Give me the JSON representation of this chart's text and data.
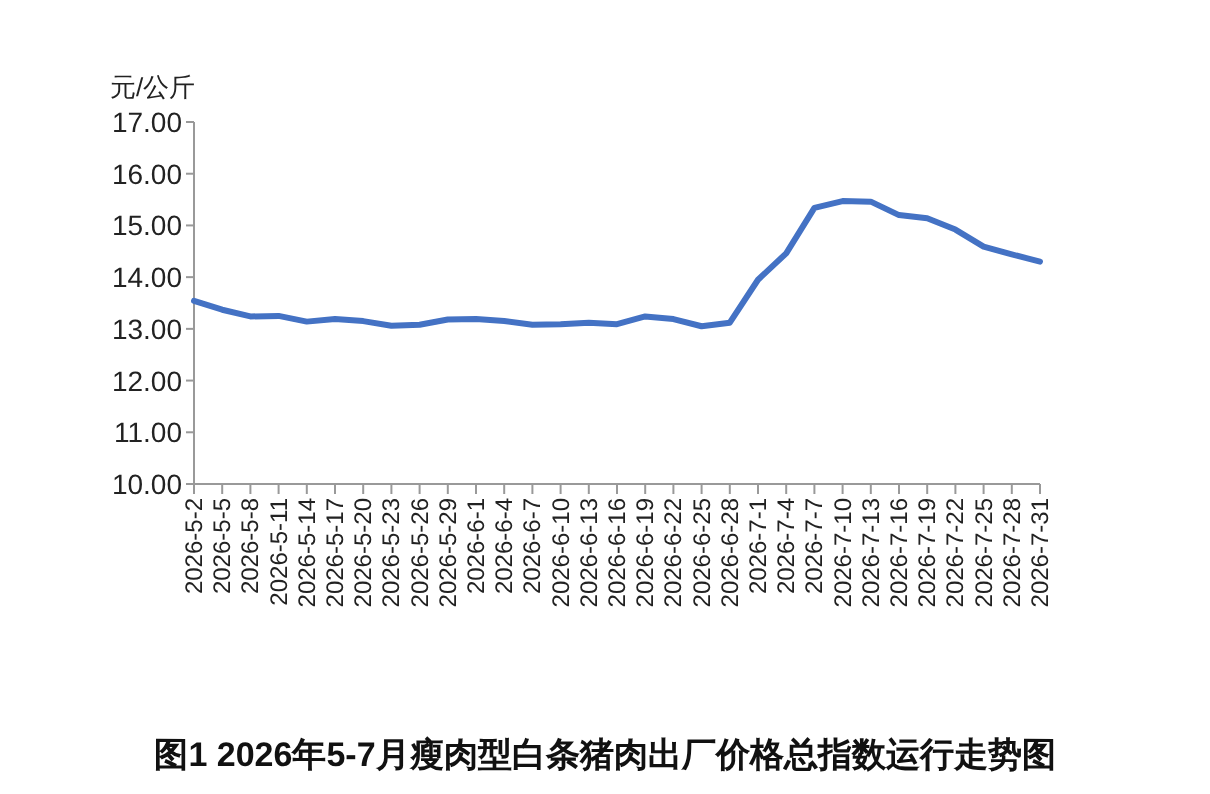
{
  "chart_data": {
    "type": "line",
    "title": "图1 2026年5-7月瘦肉型白条猪肉出厂价格总指数运行走势图",
    "ylabel": "元/公斤",
    "categories": [
      "2026-5-2",
      "2026-5-5",
      "2026-5-8",
      "2026-5-11",
      "2026-5-14",
      "2026-5-17",
      "2026-5-20",
      "2026-5-23",
      "2026-5-26",
      "2026-5-29",
      "2026-6-1",
      "2026-6-4",
      "2026-6-7",
      "2026-6-10",
      "2026-6-13",
      "2026-6-16",
      "2026-6-19",
      "2026-6-22",
      "2026-6-25",
      "2026-6-28",
      "2026-7-1",
      "2026-7-4",
      "2026-7-7",
      "2026-7-10",
      "2026-7-13",
      "2026-7-16",
      "2026-7-19",
      "2026-7-22",
      "2026-7-25",
      "2026-7-28",
      "2026-7-31"
    ],
    "series": [
      {
        "color": "#4472c4",
        "values": [
          13.54,
          13.37,
          13.24,
          13.25,
          13.14,
          13.19,
          13.15,
          13.06,
          13.08,
          13.18,
          13.19,
          13.15,
          13.08,
          13.09,
          13.12,
          13.09,
          13.24,
          13.19,
          13.05,
          13.12,
          13.95,
          14.46,
          15.34,
          15.47,
          15.46,
          15.2,
          15.14,
          14.92,
          14.59,
          14.44,
          14.3
        ]
      }
    ],
    "ylim": [
      10,
      17
    ],
    "yticks": [
      {
        "value": 10,
        "label": "10.00"
      },
      {
        "value": 11,
        "label": "11.00"
      },
      {
        "value": 12,
        "label": "12.00"
      },
      {
        "value": 13,
        "label": "13.00"
      },
      {
        "value": 14,
        "label": "14.00"
      },
      {
        "value": 15,
        "label": "15.00"
      },
      {
        "value": 16,
        "label": "16.00"
      },
      {
        "value": 17,
        "label": "17.00"
      }
    ],
    "grid": false,
    "marker": "none",
    "line_style": "solid"
  }
}
